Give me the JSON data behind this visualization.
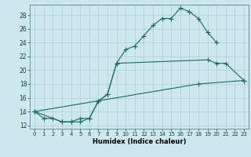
{
  "xlabel": "Humidex (Indice chaleur)",
  "bg_color": "#cce8ec",
  "grid_color": "#aacdd4",
  "line_color": "#1a6b5a",
  "xlim": [
    -0.5,
    23.5
  ],
  "ylim": [
    11.5,
    29.5
  ],
  "xticks": [
    0,
    1,
    2,
    3,
    4,
    5,
    6,
    7,
    8,
    9,
    10,
    11,
    12,
    13,
    14,
    15,
    16,
    17,
    18,
    19,
    20,
    21,
    22,
    23
  ],
  "yticks": [
    12,
    14,
    16,
    18,
    20,
    22,
    24,
    26,
    28
  ],
  "line1_x": [
    0,
    1,
    2,
    3,
    4,
    5,
    6,
    7,
    8,
    9,
    10,
    11,
    12,
    13,
    14,
    15,
    16,
    17,
    18,
    19,
    20
  ],
  "line1_y": [
    14,
    13,
    13,
    12.5,
    12.5,
    13,
    13,
    15.5,
    16.5,
    21,
    23,
    23.5,
    25,
    26.5,
    27.5,
    27.5,
    29,
    28.5,
    27.5,
    25.5,
    24
  ],
  "line2_x": [
    0,
    3,
    4,
    5,
    6,
    7,
    8,
    9,
    19,
    20,
    21,
    23
  ],
  "line2_y": [
    14,
    12.5,
    12.5,
    12.5,
    13,
    15.5,
    16.5,
    21,
    21.5,
    21,
    21,
    18.5
  ],
  "line3_x": [
    0,
    18,
    23
  ],
  "line3_y": [
    14,
    18,
    18.5
  ]
}
